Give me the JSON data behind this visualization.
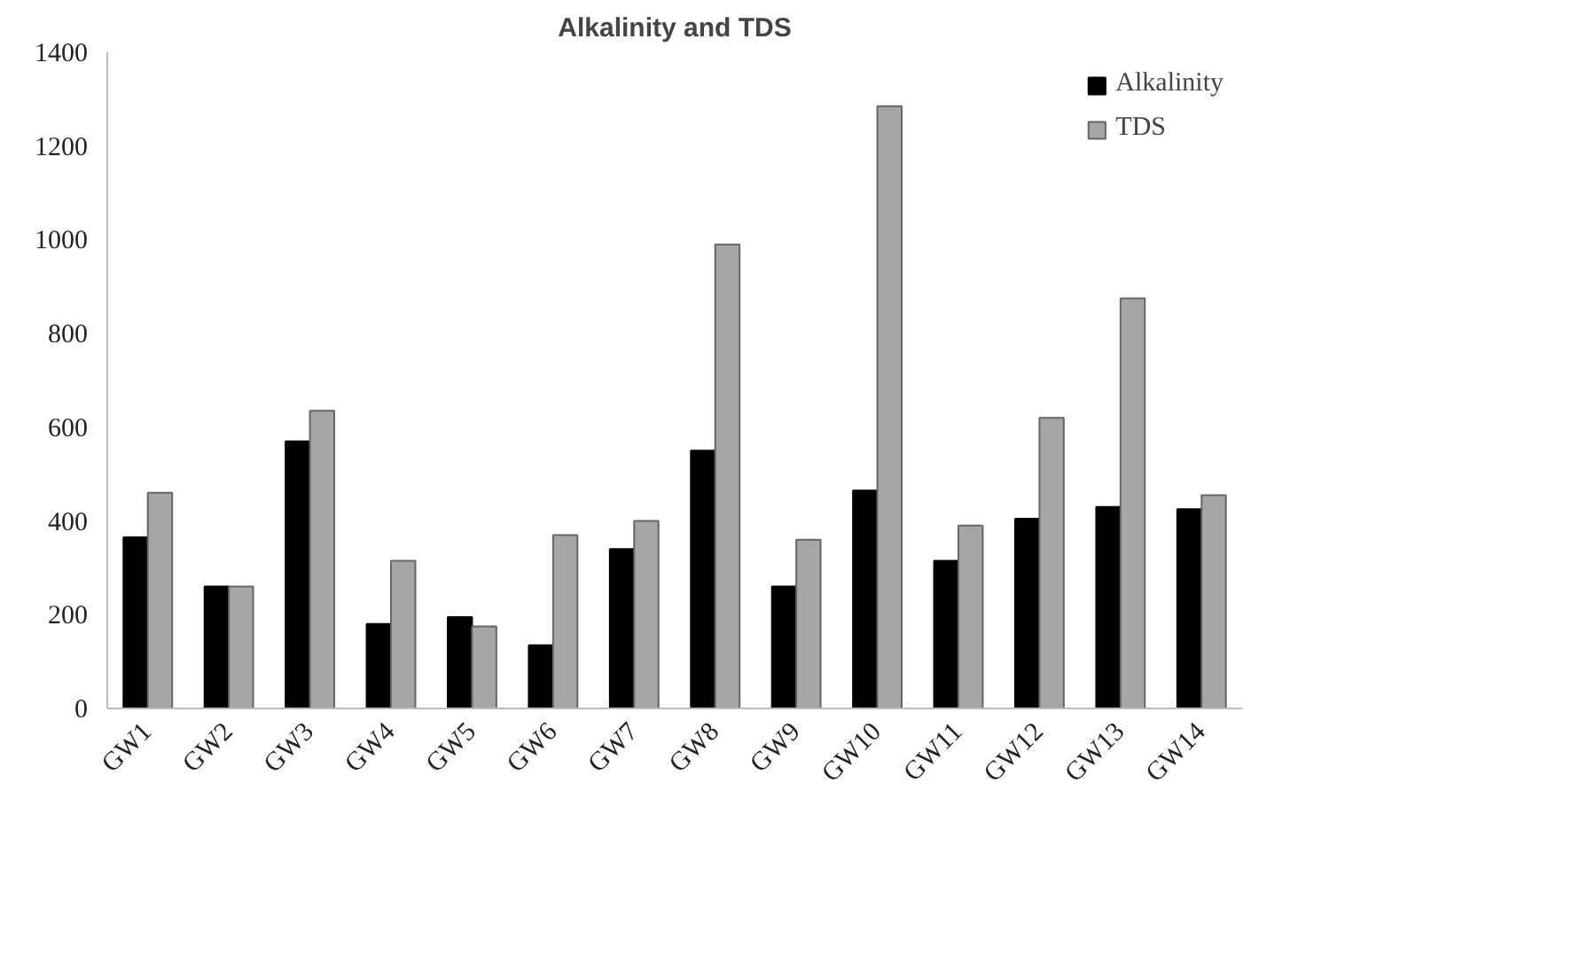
{
  "chart_data": {
    "type": "bar",
    "title": "Alkalinity and TDS",
    "categories": [
      "GW1",
      "GW2",
      "GW3",
      "GW4",
      "GW5",
      "GW6",
      "GW7",
      "GW8",
      "GW9",
      "GW10",
      "GW11",
      "GW12",
      "GW13",
      "GW14"
    ],
    "series": [
      {
        "name": "Alkalinity",
        "color": "#000000",
        "values": [
          365,
          260,
          570,
          180,
          195,
          135,
          340,
          550,
          260,
          465,
          315,
          405,
          430,
          425
        ]
      },
      {
        "name": "TDS",
        "color": "#a6a6a6",
        "values": [
          460,
          260,
          635,
          315,
          175,
          370,
          400,
          990,
          360,
          1285,
          390,
          620,
          875,
          455
        ]
      }
    ],
    "ylim": [
      0,
      1400
    ],
    "yticks": [
      0,
      200,
      400,
      600,
      800,
      1000,
      1200,
      1400
    ],
    "grid": false,
    "legend": "top right"
  }
}
